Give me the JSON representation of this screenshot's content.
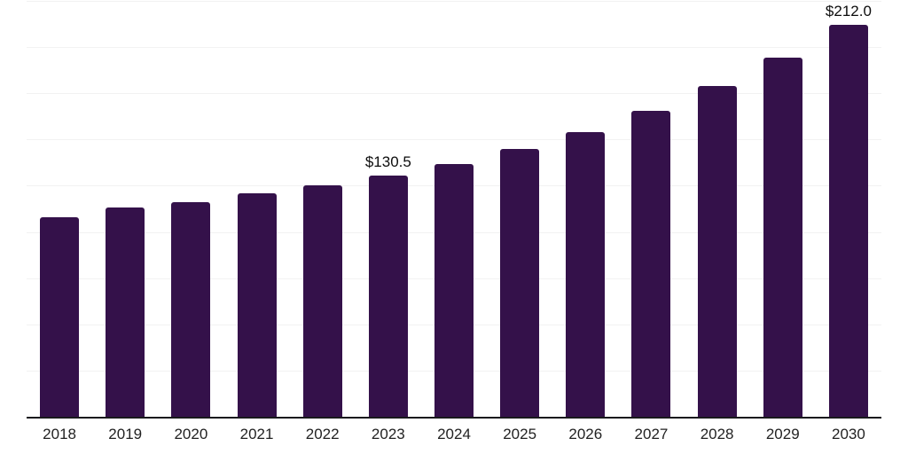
{
  "chart_data": {
    "type": "bar",
    "categories": [
      "2018",
      "2019",
      "2020",
      "2021",
      "2022",
      "2023",
      "2024",
      "2025",
      "2026",
      "2027",
      "2028",
      "2029",
      "2030"
    ],
    "values": [
      108.0,
      113.2,
      116.2,
      120.9,
      125.1,
      130.5,
      136.7,
      144.8,
      154.0,
      165.5,
      178.9,
      194.2,
      212.0
    ],
    "data_labels": [
      "",
      "",
      "",
      "",
      "",
      "$130.5",
      "",
      "",
      "",
      "",
      "",
      "",
      "$212.0"
    ],
    "ylim": [
      0,
      225
    ],
    "gridline_step": 25,
    "grid": "horizontal",
    "legend": "none",
    "y_axis_labels": "none",
    "colors": {
      "bar": "#34114a",
      "axis": "#1a1a1d",
      "gridline": "#f2f2f2",
      "tick_label": "#222222",
      "value_label": "#0d0d0d",
      "background": "#ffffff"
    }
  }
}
